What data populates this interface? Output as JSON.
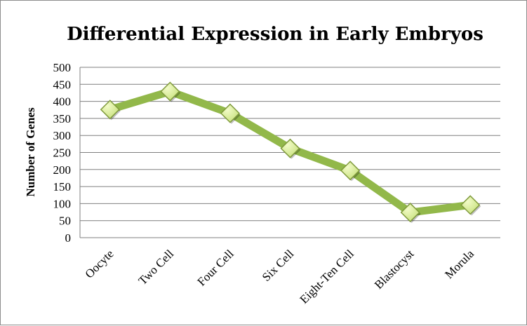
{
  "chart_data": {
    "type": "line",
    "title": "Differential Expression in Early Embryos",
    "xlabel": "",
    "ylabel": "Number of Genes",
    "categories": [
      "Oocyte",
      "Two Cell",
      "Four Cell",
      "Six Cell",
      "Eight-Ten Cell",
      "Blastocyst",
      "Morula"
    ],
    "series": [
      {
        "values": [
          376,
          429,
          365,
          262,
          197,
          74,
          96
        ]
      }
    ],
    "ylim": [
      0,
      500
    ],
    "yticks": [
      0,
      50,
      100,
      150,
      200,
      250,
      300,
      350,
      400,
      450,
      500
    ],
    "grid": true,
    "legend": "none",
    "colors": {
      "line": "#92b84a",
      "marker_light": "#f2fbc8",
      "marker_mid": "#c6e07a",
      "marker_edge": "#7f9a3c",
      "grid": "#7f7f7f"
    }
  }
}
